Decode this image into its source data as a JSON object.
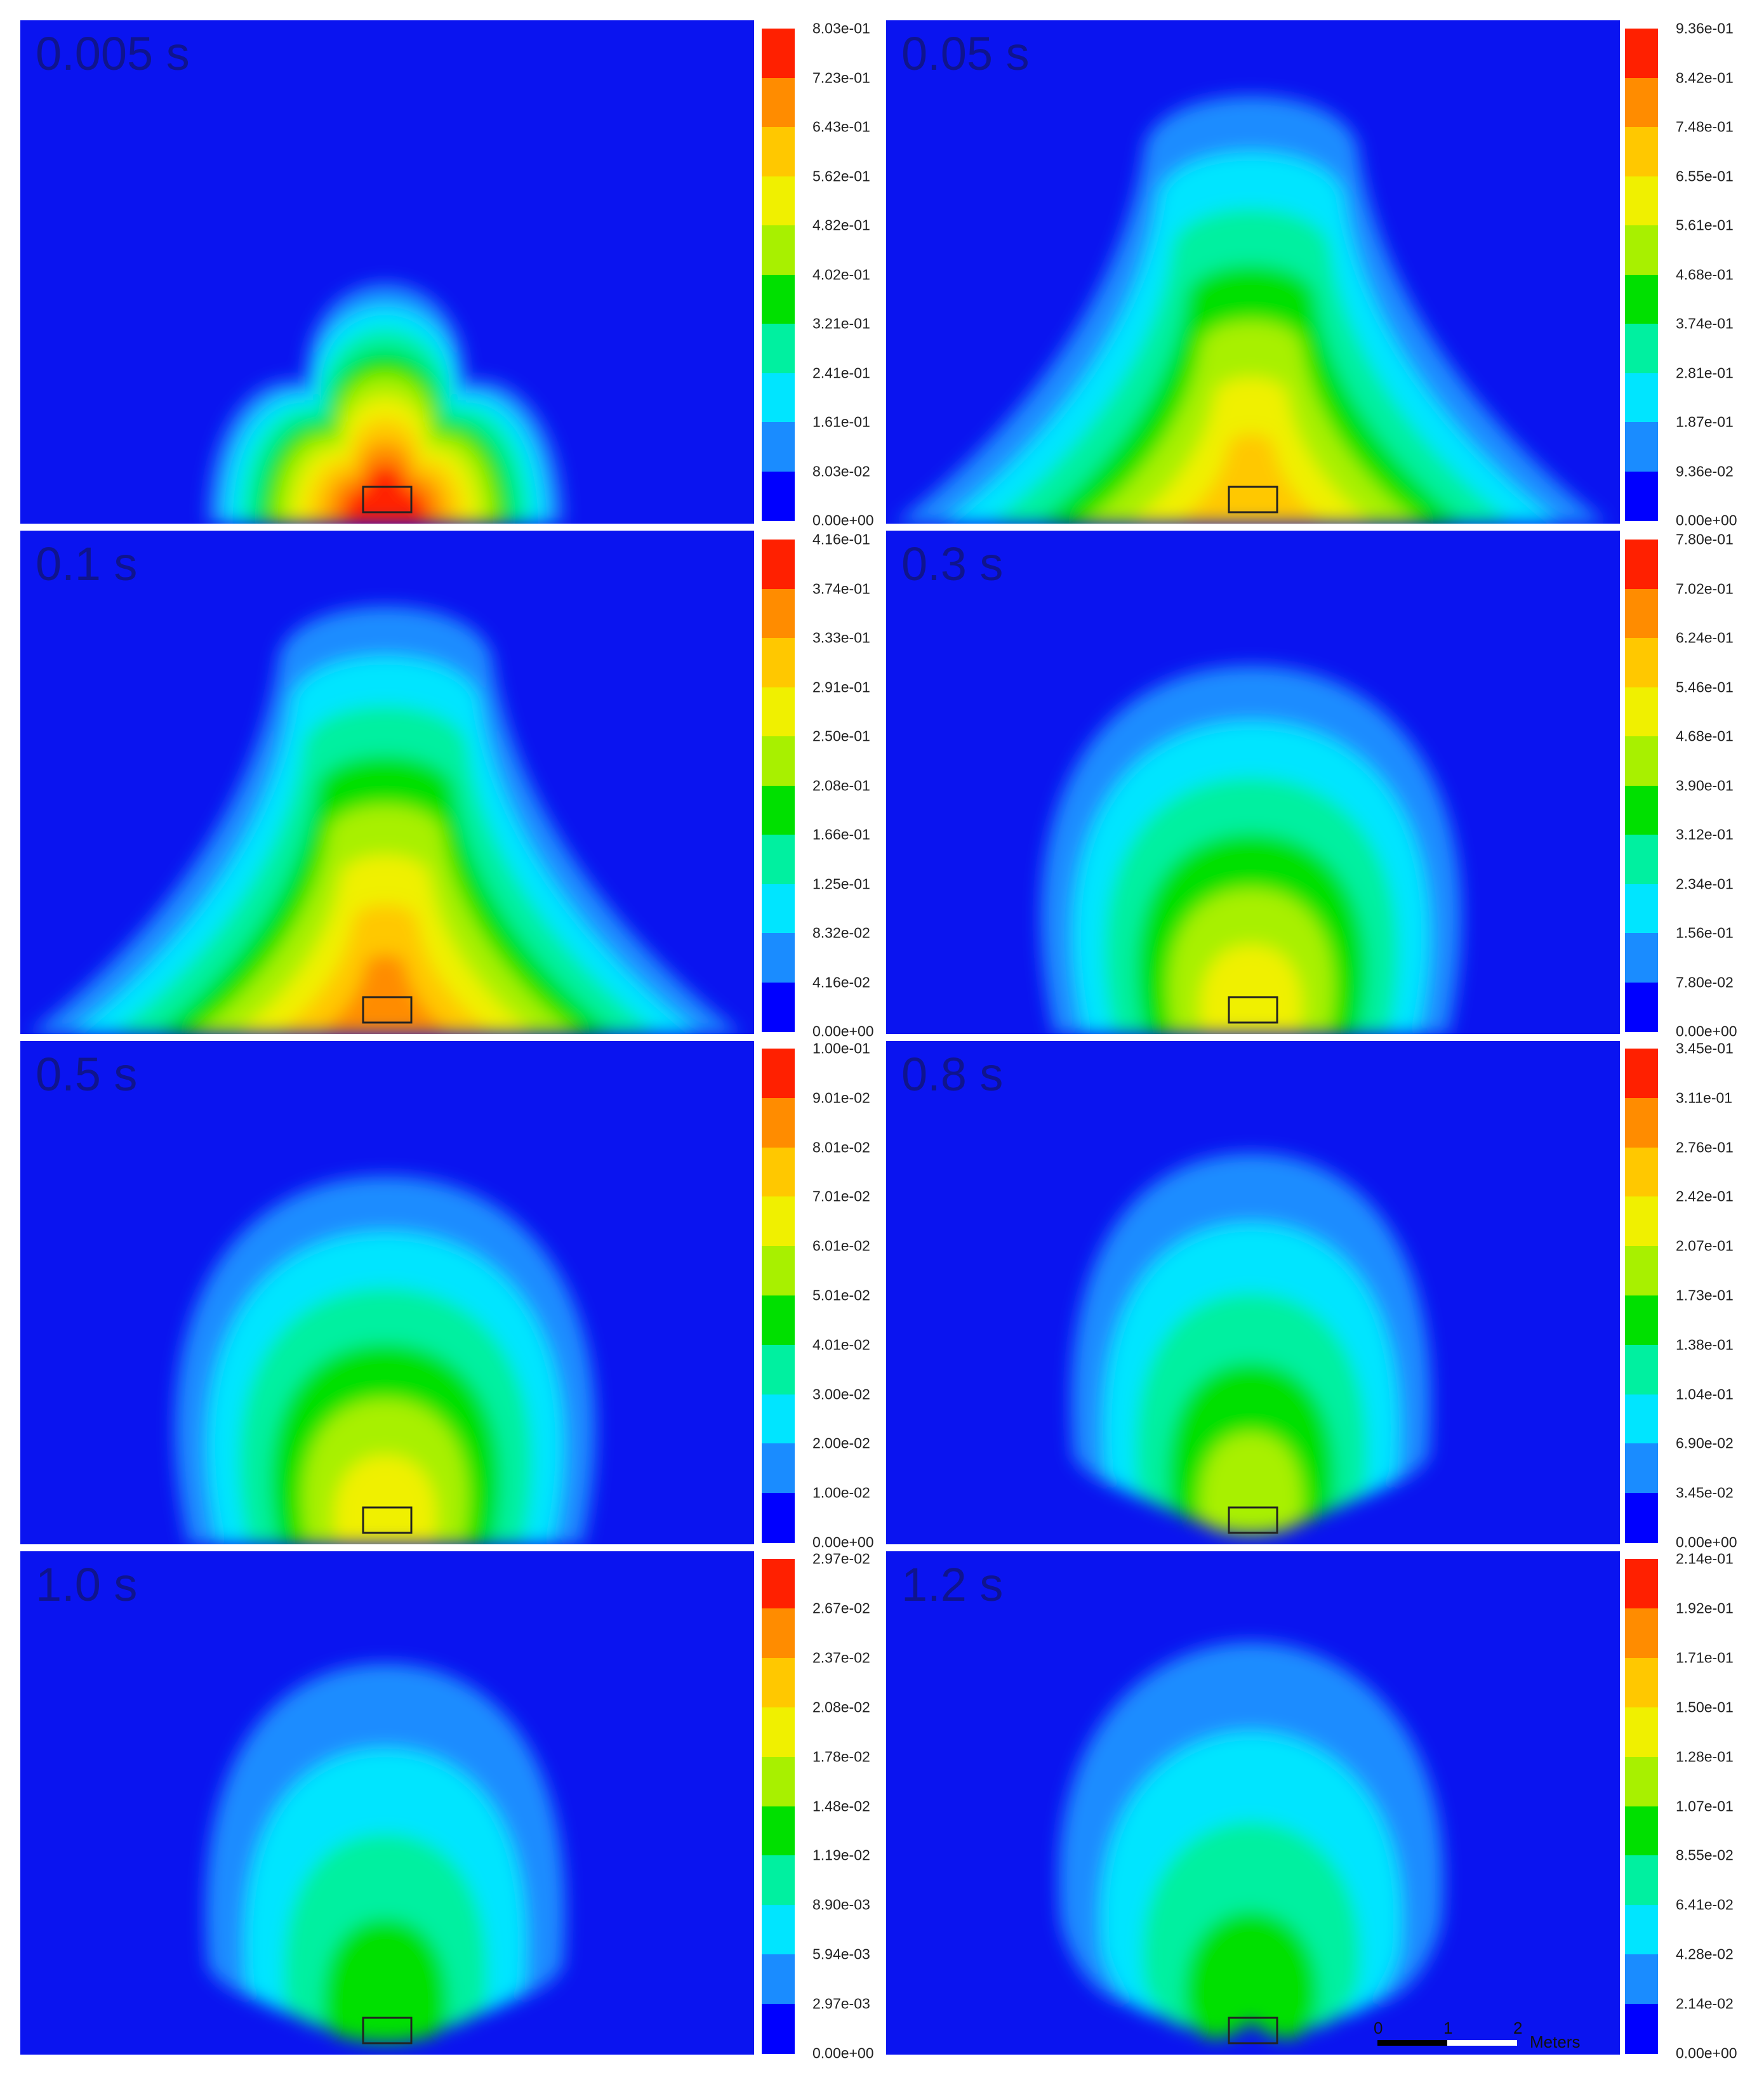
{
  "colormap": [
    "#0000ff",
    "#1a8cff",
    "#00e5ff",
    "#00f0a0",
    "#00e000",
    "#a8f000",
    "#f0f000",
    "#ffc800",
    "#ff8c00",
    "#ff2000"
  ],
  "chart_data": [
    {
      "type": "heatmap",
      "panel": "0.005 s",
      "time_label": "0.005 s",
      "colorbar_ticks": [
        "8.03e-01",
        "7.23e-01",
        "6.43e-01",
        "5.62e-01",
        "4.82e-01",
        "4.02e-01",
        "3.21e-01",
        "2.41e-01",
        "1.61e-01",
        "8.03e-02",
        "0.00e+00"
      ],
      "range": [
        0,
        0.803
      ],
      "shape": "cross",
      "plume_peak_fraction": 0.95
    },
    {
      "type": "heatmap",
      "panel": "0.05 s",
      "time_label": "0.05 s",
      "colorbar_ticks": [
        "9.36e-01",
        "8.42e-01",
        "7.48e-01",
        "6.55e-01",
        "5.61e-01",
        "4.68e-01",
        "3.74e-01",
        "2.81e-01",
        "1.87e-01",
        "9.36e-02",
        "0.00e+00"
      ],
      "range": [
        0,
        0.936
      ],
      "shape": "cone",
      "plume_peak_fraction": 0.72
    },
    {
      "type": "heatmap",
      "panel": "0.1 s",
      "time_label": "0.1 s",
      "colorbar_ticks": [
        "4.16e-01",
        "3.74e-01",
        "3.33e-01",
        "2.91e-01",
        "2.50e-01",
        "2.08e-01",
        "1.66e-01",
        "1.25e-01",
        "8.32e-02",
        "4.16e-02",
        "0.00e+00"
      ],
      "range": [
        0,
        0.416
      ],
      "shape": "cone",
      "plume_peak_fraction": 0.75
    },
    {
      "type": "heatmap",
      "panel": "0.3 s",
      "time_label": "0.3 s",
      "colorbar_ticks": [
        "7.80e-01",
        "7.02e-01",
        "6.24e-01",
        "5.46e-01",
        "4.68e-01",
        "3.90e-01",
        "3.12e-01",
        "2.34e-01",
        "1.56e-01",
        "7.80e-02",
        "0.00e+00"
      ],
      "range": [
        0,
        0.78
      ],
      "shape": "dome",
      "plume_peak_fraction": 0.62
    },
    {
      "type": "heatmap",
      "panel": "0.5 s",
      "time_label": "0.5 s",
      "colorbar_ticks": [
        "1.00e-01",
        "9.01e-02",
        "8.01e-02",
        "7.01e-02",
        "6.01e-02",
        "5.01e-02",
        "4.01e-02",
        "3.00e-02",
        "2.00e-02",
        "1.00e-02",
        "0.00e+00"
      ],
      "range": [
        0,
        0.1
      ],
      "shape": "dome",
      "plume_peak_fraction": 0.6
    },
    {
      "type": "heatmap",
      "panel": "0.8 s",
      "time_label": "0.8 s",
      "colorbar_ticks": [
        "3.45e-01",
        "3.11e-01",
        "2.76e-01",
        "2.42e-01",
        "2.07e-01",
        "1.73e-01",
        "1.38e-01",
        "1.04e-01",
        "6.90e-02",
        "3.45e-02",
        "0.00e+00"
      ],
      "range": [
        0,
        0.345
      ],
      "shape": "cloud",
      "plume_peak_fraction": 0.45
    },
    {
      "type": "heatmap",
      "panel": "1.0 s",
      "time_label": "1.0 s",
      "colorbar_ticks": [
        "2.97e-02",
        "2.67e-02",
        "2.37e-02",
        "2.08e-02",
        "1.78e-02",
        "1.48e-02",
        "1.19e-02",
        "8.90e-03",
        "5.94e-03",
        "2.97e-03",
        "0.00e+00"
      ],
      "range": [
        0,
        0.0297
      ],
      "shape": "cloud",
      "plume_peak_fraction": 0.35
    },
    {
      "type": "heatmap",
      "panel": "1.2 s",
      "time_label": "1.2 s",
      "colorbar_ticks": [
        "2.14e-01",
        "1.92e-01",
        "1.71e-01",
        "1.50e-01",
        "1.28e-01",
        "1.07e-01",
        "8.55e-02",
        "6.41e-02",
        "4.28e-02",
        "2.14e-02",
        "0.00e+00"
      ],
      "range": [
        0,
        0.214
      ],
      "shape": "kidney",
      "plume_peak_fraction": 0.4
    }
  ],
  "scale_bar": {
    "ticks": [
      "0",
      "1",
      "2"
    ],
    "unit": "Meters"
  }
}
